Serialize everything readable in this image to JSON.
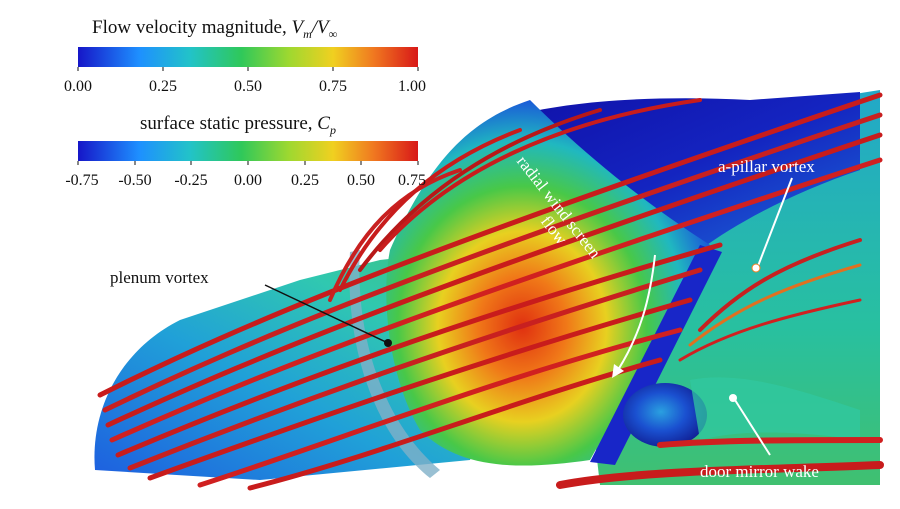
{
  "velocity_legend": {
    "title": "Flow velocity magnitude, ",
    "symbol": "V_m/V_∞",
    "ticks": [
      "0.00",
      "0.25",
      "0.50",
      "0.75",
      "1.00"
    ]
  },
  "pressure_legend": {
    "title": "surface static pressure, ",
    "symbol": "C_p",
    "ticks": [
      "-0.75",
      "-0.50",
      "-0.25",
      "0.00",
      "0.25",
      "0.50",
      "0.75"
    ]
  },
  "annotations": {
    "plenum_vortex": "plenum vortex",
    "a_pillar_vortex": "a-pillar vortex",
    "radial_flow_line1": "radial wind screen",
    "radial_flow_line2": "flow",
    "door_mirror_wake": "door mirror wake"
  },
  "colormap": {
    "stops": [
      "#1616c8",
      "#1e90ff",
      "#22c3c8",
      "#2fc85a",
      "#9ed830",
      "#f0d020",
      "#f07820",
      "#d81818"
    ]
  }
}
